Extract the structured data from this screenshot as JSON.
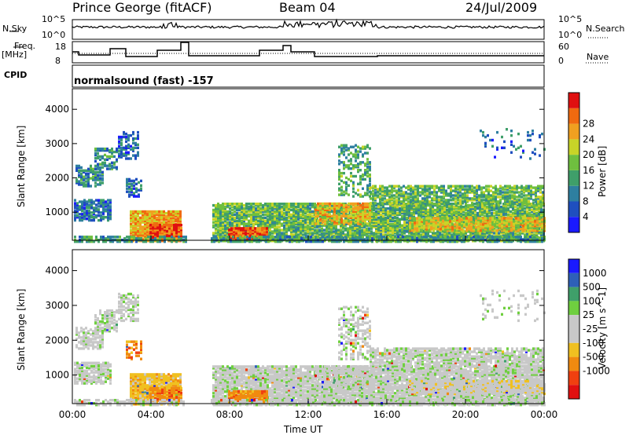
{
  "header": {
    "station": "Prince George (fitACF)",
    "beam": "Beam 04",
    "date": "24/Jul/2009"
  },
  "panels": {
    "nsky_label": "N.Sky",
    "nsky_ticks": [
      "10^5",
      "10^0"
    ],
    "nsearch_label": "N.Search",
    "nsearch_ticks": [
      "10^5",
      "10^0"
    ],
    "freq_label_1": "Freq.",
    "freq_label_2": "[MHz]",
    "freq_ticks": [
      "18",
      "8"
    ],
    "nave_label": "Nave",
    "nave_ticks": [
      "60",
      "0"
    ],
    "cpid_label": "CPID",
    "cpid_text": "normalsound (fast) -157"
  },
  "chart_data": [
    {
      "type": "heatmap",
      "title": "",
      "ylabel": "Slant Range [km]",
      "ylim": [
        180,
        4600
      ],
      "yticks": [
        "1000",
        "2000",
        "3000",
        "4000"
      ],
      "xlabel": "Time UT",
      "xlim": [
        "00:00",
        "24:00"
      ],
      "colorbar_label": "Power [dB]",
      "colorbar_ticks": [
        "4",
        "8",
        "12",
        "16",
        "20",
        "24",
        "28"
      ],
      "colorscale": [
        "#1a1aff",
        "#1f4fbf",
        "#2e7fa0",
        "#3f9f6a",
        "#6fbf3f",
        "#c8d428",
        "#f0a020",
        "#f06a10",
        "#e01010"
      ]
    },
    {
      "type": "heatmap",
      "title": "",
      "ylabel": "Slant Range [km]",
      "ylim": [
        180,
        4600
      ],
      "yticks": [
        "1000",
        "2000",
        "3000",
        "4000"
      ],
      "xlabel": "Time UT",
      "xticks": [
        "00:00",
        "04:00",
        "08:00",
        "12:00",
        "16:00",
        "20:00",
        "00:00"
      ],
      "colorbar_label": "Velocity [m s^-1]",
      "colorbar_ticks": [
        "1000",
        "500",
        "100",
        "25",
        "-25",
        "-100",
        "-500",
        "-1000"
      ],
      "colorscale": [
        "#1a1aff",
        "#2e60b8",
        "#3f9f6a",
        "#6fcf3f",
        "#c8c8c8",
        "#c8c8c8",
        "#f0c020",
        "#f08a10",
        "#f04010",
        "#e01010"
      ]
    }
  ]
}
